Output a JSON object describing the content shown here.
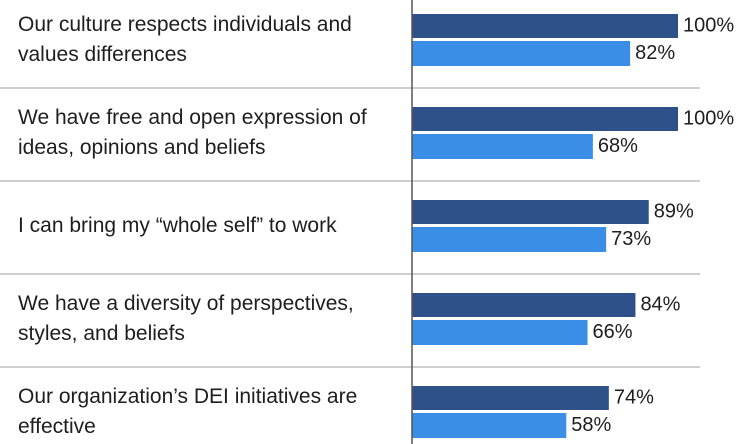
{
  "chart_data": {
    "type": "bar",
    "orientation": "horizontal",
    "categories": [
      "Our culture respects individuals and values differences",
      "We have free and open expression of ideas, opinions and beliefs",
      "I can bring my “whole self” to work",
      "We have a diversity of perspectives, styles, and beliefs",
      "Our organization’s DEI initiatives are effective"
    ],
    "series": [
      {
        "color": "#2f5189",
        "values": [
          100,
          100,
          89,
          84,
          74
        ],
        "value_labels": [
          "100%",
          "100%",
          "89%",
          "84%",
          "74%"
        ]
      },
      {
        "color": "#3b8ee6",
        "values": [
          82,
          68,
          73,
          66,
          58
        ],
        "value_labels": [
          "82%",
          "68%",
          "73%",
          "66%",
          "58%"
        ]
      }
    ],
    "xlim": [
      0,
      100
    ]
  }
}
